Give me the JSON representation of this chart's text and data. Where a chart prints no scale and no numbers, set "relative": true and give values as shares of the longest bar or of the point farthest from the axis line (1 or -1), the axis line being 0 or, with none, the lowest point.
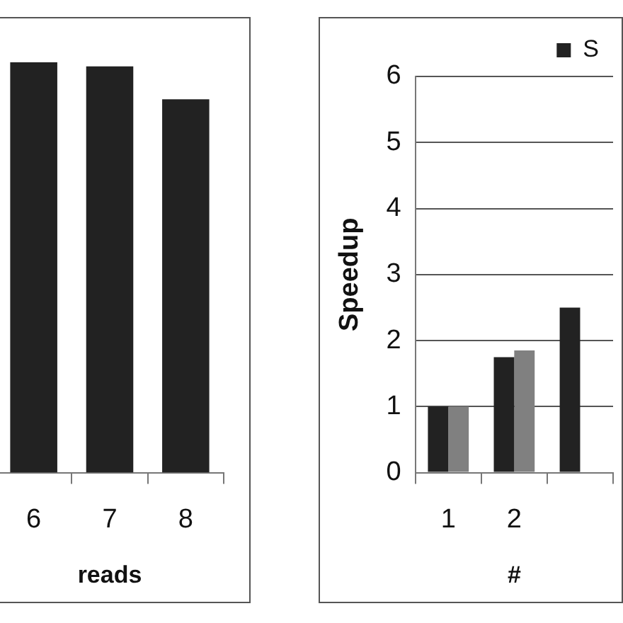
{
  "chart_data": [
    {
      "type": "bar",
      "xlabel": "reads",
      "categories": [
        "6",
        "7",
        "8"
      ],
      "series": [
        {
          "color": "#222222",
          "values": [
            1,
            0.99,
            0.91
          ]
        }
      ],
      "relative": true,
      "legend": false
    },
    {
      "type": "bar",
      "xlabel": "#",
      "ylabel": "Speedup",
      "categories": [
        "1",
        "2",
        null
      ],
      "series": [
        {
          "name": "S",
          "color": "#222222",
          "values": [
            1,
            1.75,
            2.5
          ]
        },
        {
          "color": "#808080",
          "values": [
            1,
            1.85,
            null
          ]
        }
      ],
      "ylim": [
        0,
        6
      ],
      "yticks": [
        0,
        1,
        2,
        3,
        4,
        5,
        6
      ],
      "grid": "y",
      "legend": "top right"
    }
  ]
}
